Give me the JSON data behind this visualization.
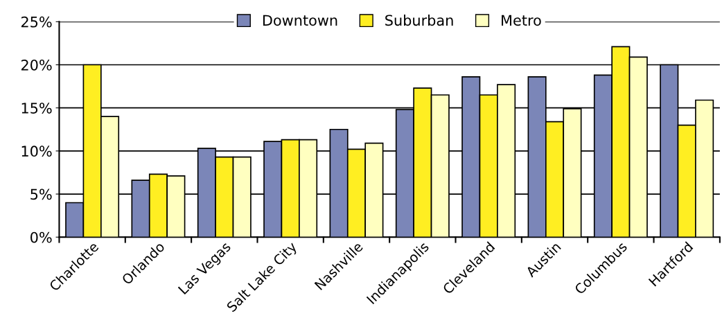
{
  "chart_data": {
    "type": "bar",
    "categories": [
      "Charlotte",
      "Orlando",
      "Las Vegas",
      "Salt Lake City",
      "Nashville",
      "Indianapolis",
      "Cleveland",
      "Austin",
      "Columbus",
      "Hartford"
    ],
    "series": [
      {
        "name": "Downtown",
        "color": "#7b86b8",
        "values": [
          4.0,
          6.6,
          10.3,
          11.1,
          12.5,
          14.8,
          18.6,
          18.6,
          18.8,
          20.0
        ]
      },
      {
        "name": "Suburban",
        "color": "#ffee22",
        "values": [
          20.0,
          7.3,
          9.3,
          11.3,
          10.2,
          17.3,
          16.5,
          13.4,
          22.1,
          13.0
        ]
      },
      {
        "name": "Metro",
        "color": "#ffffc0",
        "values": [
          14.0,
          7.1,
          9.3,
          11.3,
          10.9,
          16.5,
          17.7,
          14.9,
          20.9,
          15.9
        ]
      }
    ],
    "ylim": [
      0,
      25
    ],
    "yticks": [
      {
        "value": 0,
        "label": "0%"
      },
      {
        "value": 5,
        "label": "5%"
      },
      {
        "value": 10,
        "label": "10%"
      },
      {
        "value": 15,
        "label": "15%"
      },
      {
        "value": 20,
        "label": "20%"
      },
      {
        "value": 25,
        "label": "25%"
      }
    ],
    "grid": "y",
    "legend": "top"
  }
}
